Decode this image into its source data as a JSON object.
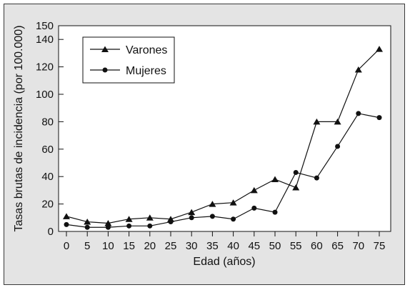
{
  "chart_data": {
    "type": "line",
    "xlabel": "Edad (años)",
    "ylabel": "Tasas brutas de incidencia (por 100.000)",
    "x": [
      0,
      5,
      10,
      15,
      20,
      25,
      30,
      35,
      40,
      45,
      50,
      55,
      60,
      65,
      70,
      75
    ],
    "ylim": [
      0,
      150
    ],
    "yticks": [
      0,
      20,
      40,
      60,
      80,
      100,
      120,
      140,
      150
    ],
    "grid": false,
    "legend_position": "top-left",
    "series": [
      {
        "name": "Varones",
        "marker": "triangle",
        "values": [
          11,
          7,
          6,
          9,
          10,
          9,
          14,
          20,
          21,
          30,
          38,
          32,
          80,
          80,
          118,
          133
        ]
      },
      {
        "name": "Mujeres",
        "marker": "circle",
        "values": [
          5,
          3,
          3,
          4,
          4,
          7,
          10,
          11,
          9,
          17,
          14,
          43,
          39,
          62,
          86,
          83
        ]
      }
    ],
    "colors": {
      "frame_bg": "#e4e4e4",
      "plot_bg": "#ffffff",
      "ink": "#111111"
    }
  }
}
